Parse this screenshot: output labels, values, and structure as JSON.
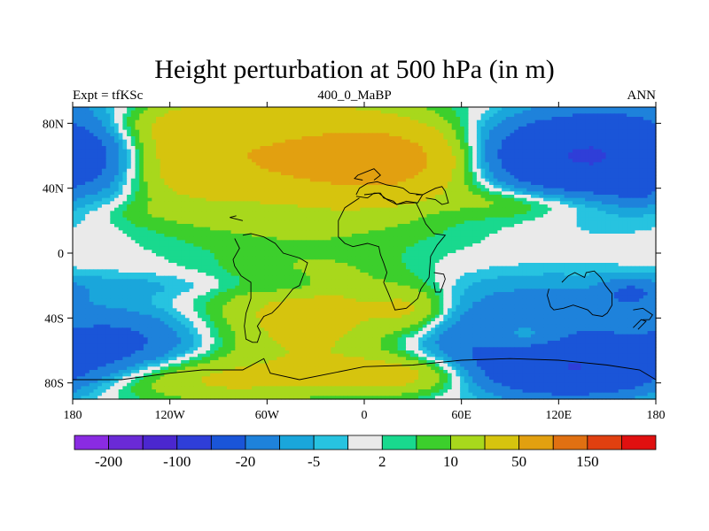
{
  "chart_data": {
    "type": "heatmap",
    "title": "Height perturbation at 500 hPa (in m)",
    "left_string": "Expt = tfKSc",
    "center_string": "400_0_MaBP",
    "right_string": "ANN",
    "x_ticks": [
      {
        "value": -180,
        "label": "180"
      },
      {
        "value": -120,
        "label": "120W"
      },
      {
        "value": -60,
        "label": "60W"
      },
      {
        "value": 0,
        "label": "0"
      },
      {
        "value": 60,
        "label": "60E"
      },
      {
        "value": 120,
        "label": "120E"
      },
      {
        "value": 180,
        "label": "180"
      }
    ],
    "y_ticks": [
      {
        "value": 80,
        "label": "80N"
      },
      {
        "value": 40,
        "label": "40N"
      },
      {
        "value": 0,
        "label": "0"
      },
      {
        "value": -40,
        "label": "40S"
      },
      {
        "value": -80,
        "label": "80S"
      }
    ],
    "xlim": [
      -180,
      180
    ],
    "ylim": [
      -90,
      90
    ],
    "levels": [
      -200,
      -150,
      -100,
      -50,
      -20,
      -10,
      -5,
      -2,
      2,
      5,
      10,
      20,
      50,
      100,
      150,
      200
    ],
    "colors": [
      "#8a2be2",
      "#6a2ad6",
      "#4b27cf",
      "#2f3ed8",
      "#1a55d8",
      "#1e82db",
      "#1aa6db",
      "#27c3e0",
      "#eaeaea",
      "#19d98e",
      "#3ccf2c",
      "#a8d81c",
      "#d6c40e",
      "#e2a010",
      "#e07012",
      "#e04010",
      "#e01010"
    ],
    "colorbar_labels": [
      {
        "level": -200,
        "label": "-200"
      },
      {
        "level": -100,
        "label": "-100"
      },
      {
        "level": -20,
        "label": "-20"
      },
      {
        "level": -5,
        "label": "-5"
      },
      {
        "level": 2,
        "label": "2"
      },
      {
        "level": 10,
        "label": "10"
      },
      {
        "level": 50,
        "label": "50"
      },
      {
        "level": 150,
        "label": "150"
      }
    ],
    "grid": false,
    "features": [
      {
        "lon": -40,
        "lat": 55,
        "slon": 75,
        "slat": 25,
        "amp": 42
      },
      {
        "lon": 10,
        "lat": 58,
        "slon": 28,
        "slat": 12,
        "amp": 55
      },
      {
        "lon": -95,
        "lat": 62,
        "slon": 45,
        "slat": 20,
        "amp": 12
      },
      {
        "lon": 115,
        "lat": 60,
        "slon": 38,
        "slat": 18,
        "amp": -45
      },
      {
        "lon": 165,
        "lat": 62,
        "slon": 30,
        "slat": 22,
        "amp": -25
      },
      {
        "lon": -160,
        "lat": 62,
        "slon": 25,
        "slat": 22,
        "amp": -22
      },
      {
        "lon": -130,
        "lat": 78,
        "slon": 60,
        "slat": 10,
        "amp": 8
      },
      {
        "lon": -70,
        "lat": 82,
        "slon": 60,
        "slat": 8,
        "amp": 6
      },
      {
        "lon": -55,
        "lat": 33,
        "slon": 40,
        "slat": 6,
        "amp": -9
      },
      {
        "lon": -145,
        "lat": 25,
        "slon": 20,
        "slat": 6,
        "amp": 4
      },
      {
        "lon": -175,
        "lat": 36,
        "slon": 8,
        "slat": 6,
        "amp": 5
      },
      {
        "lon": 90,
        "lat": 31,
        "slon": 35,
        "slat": 7,
        "amp": 12
      },
      {
        "lon": 140,
        "lat": 30,
        "slon": 25,
        "slat": 6,
        "amp": 3
      },
      {
        "lon": 170,
        "lat": 36,
        "slon": 12,
        "slat": 5,
        "amp": -7
      },
      {
        "lon": 55,
        "lat": 26,
        "slon": 20,
        "slat": 6,
        "amp": -4
      },
      {
        "lon": -30,
        "lat": -40,
        "slon": 45,
        "slat": 22,
        "amp": 30
      },
      {
        "lon": -95,
        "lat": -78,
        "slon": 55,
        "slat": 10,
        "amp": 22
      },
      {
        "lon": 20,
        "lat": -75,
        "slon": 30,
        "slat": 8,
        "amp": 26
      },
      {
        "lon": 30,
        "lat": -35,
        "slon": 16,
        "slat": 10,
        "amp": 18
      },
      {
        "lon": -150,
        "lat": -55,
        "slon": 40,
        "slat": 15,
        "amp": -22
      },
      {
        "lon": 130,
        "lat": -72,
        "slon": 45,
        "slat": 12,
        "amp": -45
      },
      {
        "lon": 85,
        "lat": -50,
        "slon": 55,
        "slat": 14,
        "amp": -22
      },
      {
        "lon": 100,
        "lat": -25,
        "slon": 60,
        "slat": 12,
        "amp": -7
      },
      {
        "lon": -110,
        "lat": -20,
        "slon": 70,
        "slat": 6,
        "amp": -6
      },
      {
        "lon": -45,
        "lat": -20,
        "slon": 16,
        "slat": 6,
        "amp": -7
      },
      {
        "lon": 100,
        "lat": -52,
        "slon": 20,
        "slat": 8,
        "amp": 20
      },
      {
        "lon": 165,
        "lat": -55,
        "slon": 15,
        "slat": 10,
        "amp": 6
      },
      {
        "lon": 165,
        "lat": -25,
        "slon": 12,
        "slat": 6,
        "amp": -15
      }
    ],
    "coastlines": [
      [
        [
          -5,
          35
        ],
        [
          2,
          34
        ],
        [
          6,
          37
        ],
        [
          10,
          37
        ],
        [
          12,
          34
        ],
        [
          18,
          32
        ],
        [
          20,
          30
        ],
        [
          26,
          32
        ],
        [
          33,
          31
        ],
        [
          36,
          36
        ],
        [
          28,
          37
        ],
        [
          24,
          40
        ],
        [
          20,
          41
        ],
        [
          14,
          42
        ],
        [
          8,
          44
        ],
        [
          2,
          43
        ],
        [
          -3,
          40
        ],
        [
          -5,
          36
        ]
      ],
      [
        [
          -1,
          45
        ],
        [
          -6,
          46
        ],
        [
          -4,
          48
        ],
        [
          1,
          50
        ],
        [
          6,
          52
        ],
        [
          10,
          48
        ],
        [
          6,
          45
        ]
      ],
      [
        [
          32,
          36
        ],
        [
          36,
          36
        ],
        [
          40,
          38
        ],
        [
          44,
          40
        ],
        [
          48,
          41
        ],
        [
          50,
          38
        ],
        [
          52,
          31
        ],
        [
          48,
          30
        ],
        [
          44,
          33
        ],
        [
          38,
          34
        ]
      ],
      [
        [
          -3,
          34
        ],
        [
          -12,
          28
        ],
        [
          -16,
          20
        ],
        [
          -16,
          10
        ],
        [
          -12,
          6
        ],
        [
          -7,
          4
        ],
        [
          2,
          6
        ],
        [
          9,
          4
        ],
        [
          10,
          -1
        ],
        [
          12,
          -6
        ],
        [
          14,
          -12
        ],
        [
          12,
          -18
        ],
        [
          15,
          -25
        ],
        [
          17,
          -30
        ],
        [
          19,
          -35
        ],
        [
          26,
          -34
        ],
        [
          33,
          -28
        ],
        [
          35,
          -22
        ],
        [
          40,
          -15
        ],
        [
          41,
          -2
        ],
        [
          45,
          5
        ],
        [
          50,
          11
        ],
        [
          43,
          12
        ],
        [
          38,
          18
        ],
        [
          34,
          27
        ],
        [
          32,
          31
        ],
        [
          26,
          31
        ],
        [
          20,
          30
        ],
        [
          14,
          33
        ],
        [
          9,
          37
        ],
        [
          0,
          36
        ]
      ],
      [
        [
          43,
          -12
        ],
        [
          49,
          -13
        ],
        [
          50,
          -16
        ],
        [
          47,
          -24
        ],
        [
          44,
          -24
        ],
        [
          43,
          -18
        ]
      ],
      [
        [
          -80,
          9
        ],
        [
          -77,
          3
        ],
        [
          -81,
          -4
        ],
        [
          -80,
          -8
        ],
        [
          -76,
          -14
        ],
        [
          -70,
          -18
        ],
        [
          -70,
          -28
        ],
        [
          -73,
          -37
        ],
        [
          -74,
          -45
        ],
        [
          -73,
          -53
        ],
        [
          -69,
          -55
        ],
        [
          -66,
          -55
        ],
        [
          -64,
          -49
        ],
        [
          -66,
          -45
        ],
        [
          -62,
          -39
        ],
        [
          -57,
          -37
        ],
        [
          -53,
          -33
        ],
        [
          -48,
          -27
        ],
        [
          -44,
          -22
        ],
        [
          -40,
          -20
        ],
        [
          -37,
          -12
        ],
        [
          -35,
          -6
        ],
        [
          -40,
          -3
        ],
        [
          -50,
          0
        ],
        [
          -55,
          6
        ],
        [
          -62,
          10
        ],
        [
          -70,
          12
        ],
        [
          -75,
          11
        ]
      ],
      [
        [
          114,
          -22
        ],
        [
          113,
          -26
        ],
        [
          115,
          -33
        ],
        [
          117,
          -35
        ],
        [
          123,
          -34
        ],
        [
          129,
          -32
        ],
        [
          135,
          -34
        ],
        [
          138,
          -35
        ],
        [
          141,
          -38
        ],
        [
          147,
          -39
        ],
        [
          150,
          -37
        ],
        [
          153,
          -32
        ],
        [
          153,
          -25
        ],
        [
          149,
          -20
        ],
        [
          146,
          -15
        ],
        [
          142,
          -11
        ],
        [
          137,
          -12
        ],
        [
          136,
          -15
        ],
        [
          130,
          -12
        ],
        [
          126,
          -14
        ],
        [
          122,
          -18
        ]
      ],
      [
        [
          166,
          -35
        ],
        [
          172,
          -34
        ],
        [
          178,
          -38
        ],
        [
          176,
          -41
        ],
        [
          172,
          -41
        ]
      ],
      [
        [
          166,
          -46
        ],
        [
          171,
          -41
        ],
        [
          174,
          -42
        ],
        [
          169,
          -47
        ]
      ],
      [
        [
          -180,
          -78
        ],
        [
          -150,
          -78
        ],
        [
          -120,
          -74
        ],
        [
          -100,
          -72
        ],
        [
          -75,
          -72
        ],
        [
          -62,
          -65
        ],
        [
          -58,
          -74
        ],
        [
          -40,
          -78
        ],
        [
          -20,
          -74
        ],
        [
          0,
          -70
        ],
        [
          30,
          -69
        ],
        [
          60,
          -66
        ],
        [
          90,
          -65
        ],
        [
          120,
          -66
        ],
        [
          150,
          -69
        ],
        [
          170,
          -72
        ],
        [
          180,
          -78
        ]
      ],
      [
        [
          -75,
          20
        ],
        [
          -83,
          22
        ],
        [
          -79,
          23
        ]
      ]
    ]
  }
}
